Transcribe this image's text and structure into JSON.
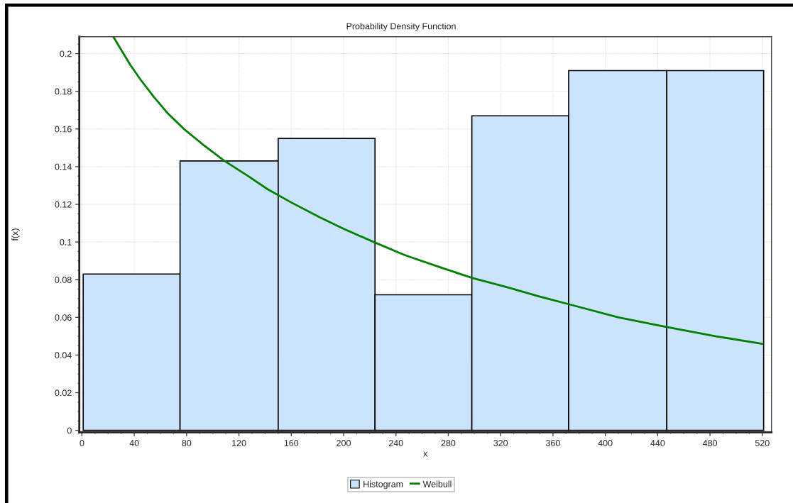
{
  "chart_data": {
    "type": "histogram",
    "title": "Probability Density Function",
    "xlabel": "x",
    "ylabel": "f(x)",
    "bins": [
      1,
      75,
      150,
      224,
      298,
      372,
      447,
      521
    ],
    "series": [
      {
        "name": "Histogram",
        "color": "#cce4fb",
        "values": [
          0.083,
          0.143,
          0.155,
          0.072,
          0.167,
          0.191,
          0.191
        ]
      },
      {
        "name": "Weibull",
        "type": "line",
        "color": "#008000",
        "x": [
          24,
          30,
          37,
          45,
          55,
          66,
          78,
          92,
          109,
          127,
          142,
          160,
          182,
          200,
          223,
          247,
          272,
          298,
          325,
          350,
          372,
          410,
          446,
          484,
          520
        ],
        "values": [
          0.209,
          0.202,
          0.194,
          0.186,
          0.177,
          0.168,
          0.16,
          0.152,
          0.143,
          0.135,
          0.128,
          0.121,
          0.113,
          0.107,
          0.1,
          0.093,
          0.087,
          0.081,
          0.076,
          0.071,
          0.067,
          0.06,
          0.055,
          0.05,
          0.046
        ]
      }
    ],
    "xlim": [
      -2,
      527
    ],
    "xticks": [
      0,
      40,
      80,
      120,
      160,
      200,
      240,
      280,
      320,
      360,
      400,
      440,
      480,
      520
    ],
    "ylim": [
      -0.001,
      0.209
    ],
    "yticks": [
      0,
      0.02,
      0.04,
      0.06,
      0.08,
      0.1,
      0.12,
      0.14,
      0.16,
      0.18,
      0.2
    ],
    "grid": true,
    "legend": "bottom"
  }
}
